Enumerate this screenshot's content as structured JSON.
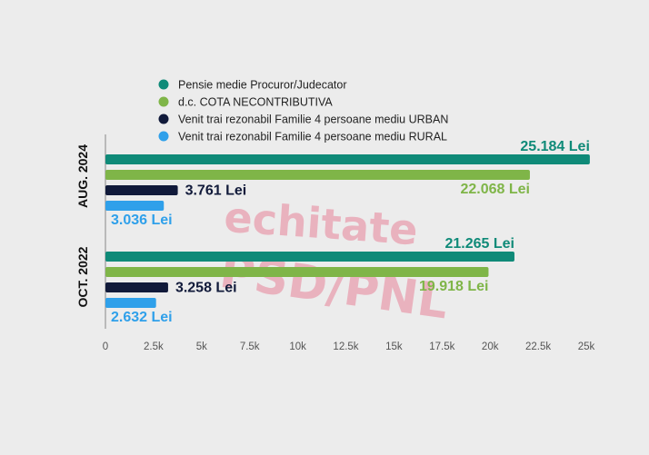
{
  "chart_data": {
    "type": "bar",
    "orientation": "horizontal",
    "categories": [
      "AUG. 2024",
      "OCT. 2022"
    ],
    "series": [
      {
        "name": "Pensie medie Procuror/Judecator",
        "color": "#0f8a78",
        "values": [
          25184,
          21265
        ],
        "labels": [
          "25.184 Lei",
          "21.265 Lei"
        ]
      },
      {
        "name": "d.c. COTA NECONTRIBUTIVA",
        "color": "#7fb548",
        "values": [
          22068,
          19918
        ],
        "labels": [
          "22.068 Lei",
          "19.918 Lei"
        ]
      },
      {
        "name": "Venit trai rezonabil Familie 4 persoane mediu URBAN",
        "color": "#111a3a",
        "values": [
          3761,
          3258
        ],
        "labels": [
          "3.761 Lei",
          "3.258 Lei"
        ]
      },
      {
        "name": "Venit trai rezonabil Familie 4 persoane mediu RURAL",
        "color": "#2fa0ea",
        "values": [
          3036,
          2632
        ],
        "labels": [
          "3.036 Lei",
          "2.632 Lei"
        ]
      }
    ],
    "xlim": [
      0,
      25000
    ],
    "x_ticks": [
      "0",
      "2.5k",
      "5k",
      "7.5k",
      "10k",
      "12.5k",
      "15k",
      "17.5k",
      "20k",
      "22.5k",
      "25k"
    ],
    "title": "",
    "xlabel": "",
    "ylabel": "",
    "legend_position": "top",
    "grid": false
  },
  "watermark": {
    "line1": "echitate",
    "line2": "PSD/PNL",
    "color": "#e9a9b7"
  }
}
